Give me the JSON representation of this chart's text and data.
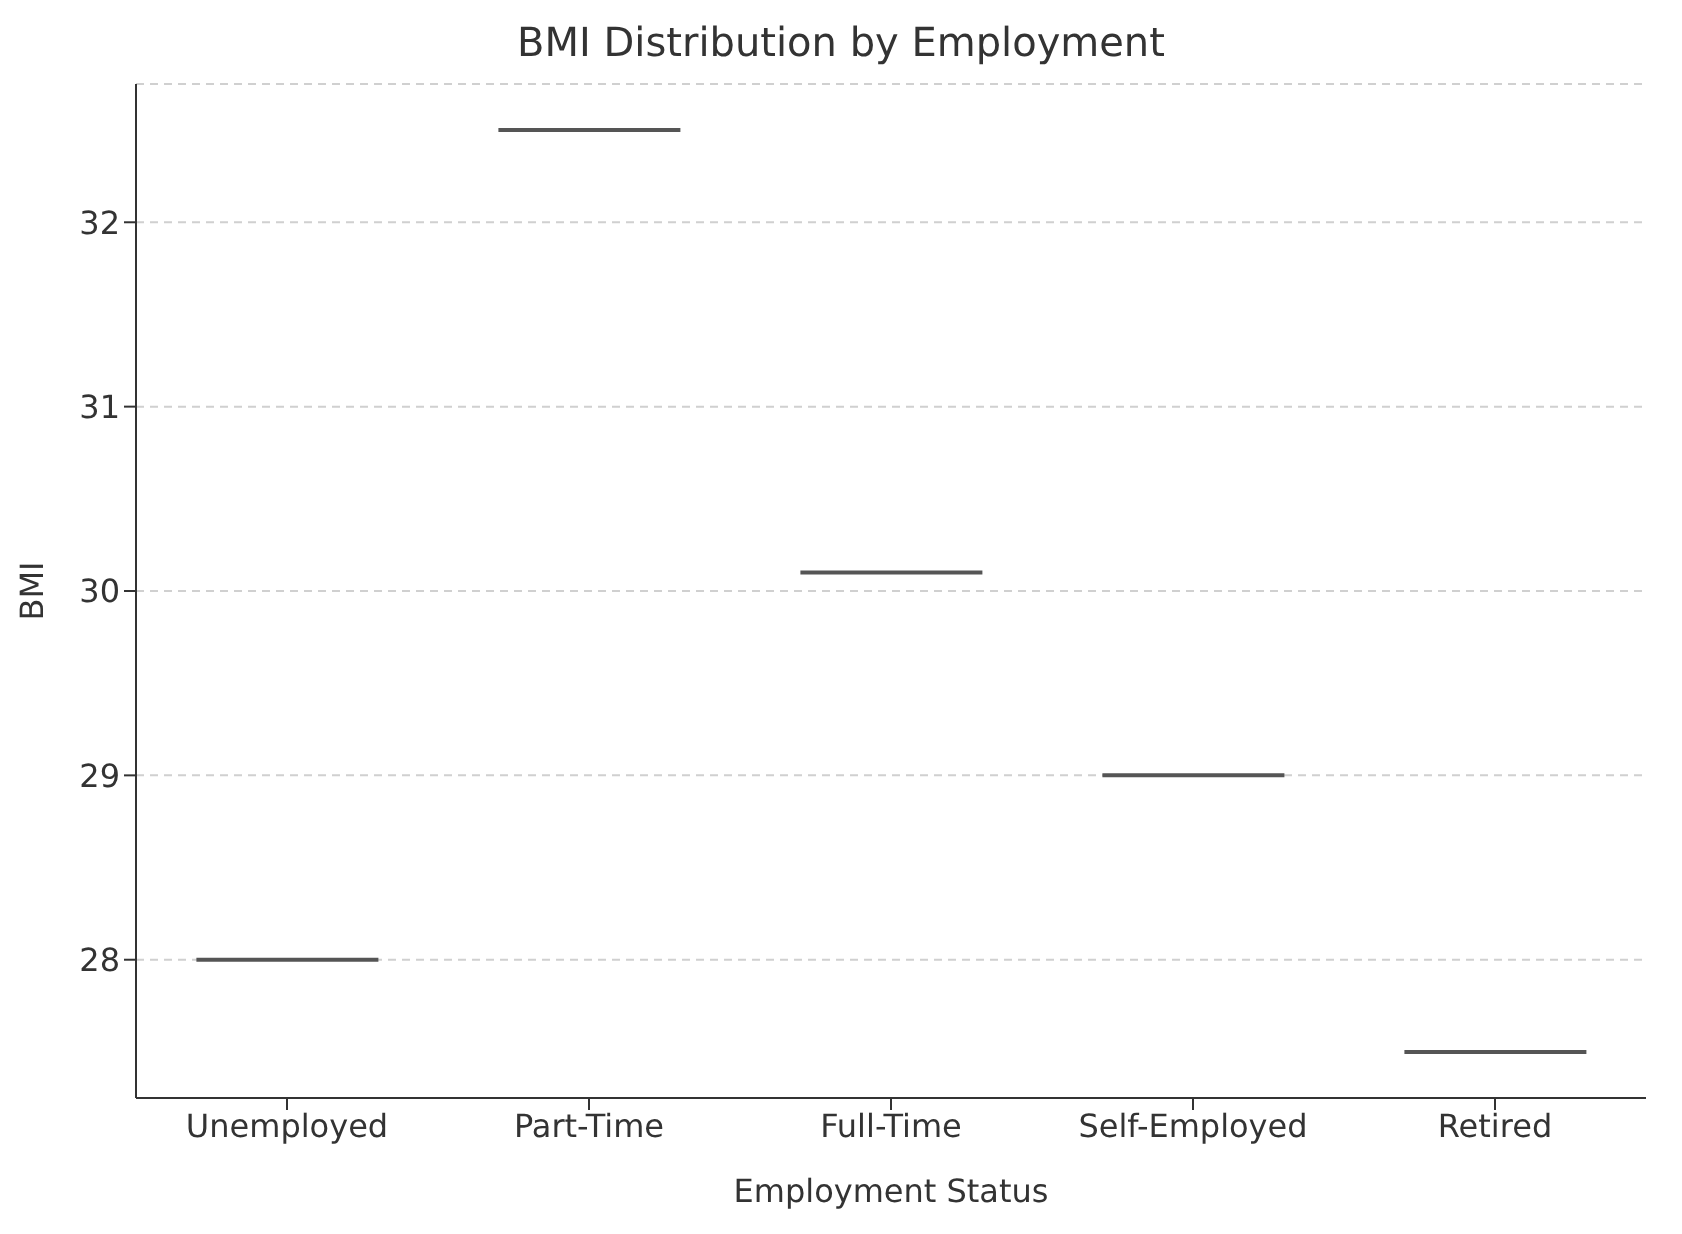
{
  "chart_data": {
    "type": "box",
    "title": "BMI Distribution by Employment",
    "xlabel": "Employment Status",
    "ylabel": "BMI",
    "categories": [
      "Unemployed",
      "Part-Time",
      "Full-Time",
      "Self-Employed",
      "Retired"
    ],
    "boxes": [
      {
        "low": 28.0,
        "q1": 28.0,
        "median": 28.0,
        "q3": 28.0,
        "high": 28.0
      },
      {
        "low": 32.5,
        "q1": 32.5,
        "median": 32.5,
        "q3": 32.5,
        "high": 32.5
      },
      {
        "low": 30.1,
        "q1": 30.1,
        "median": 30.1,
        "q3": 30.1,
        "high": 30.1
      },
      {
        "low": 29.0,
        "q1": 29.0,
        "median": 29.0,
        "q3": 29.0,
        "high": 29.0
      },
      {
        "low": 27.5,
        "q1": 27.5,
        "median": 27.5,
        "q3": 27.5,
        "high": 27.5
      }
    ],
    "color": "#555555",
    "ylim": [
      27.25,
      32.75
    ],
    "yticks": [
      28,
      29,
      30,
      31,
      32
    ],
    "grid": "y"
  }
}
